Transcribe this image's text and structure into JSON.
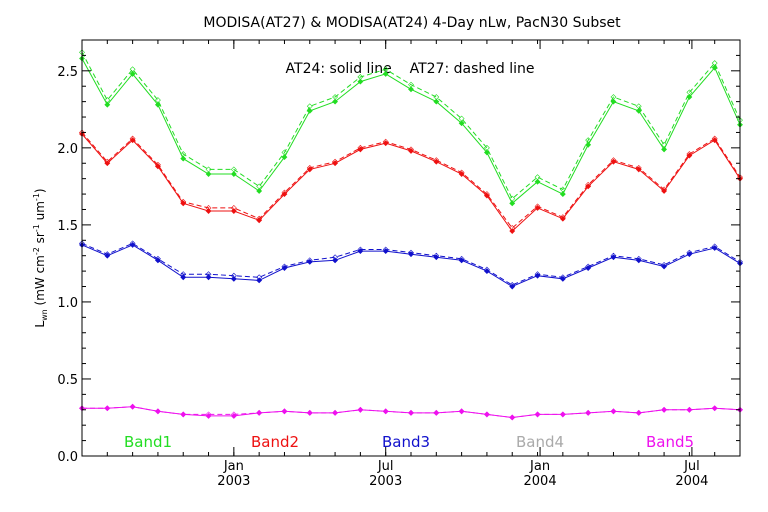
{
  "chart_data": {
    "type": "line",
    "title": "MODISA(AT27) & MODISA(AT24) 4-Day nLw, PacN30 Subset",
    "annotation": "AT24: solid line    AT27: dashed line",
    "ylabel": {
      "base": "L",
      "sub": "wn",
      "units_open": " (mW cm",
      "exp1": "-2",
      "mid": " sr",
      "exp2": "-1",
      "um": " um",
      "exp3": "-1",
      "close": ")"
    },
    "ylim": [
      0.0,
      2.7
    ],
    "xlim": [
      0,
      26
    ],
    "yticks": [
      "0.0",
      "0.5",
      "1.0",
      "1.5",
      "2.0",
      "2.5"
    ],
    "xticks": [
      {
        "x": 6,
        "month": "Jan",
        "year": "2003"
      },
      {
        "x": 12,
        "month": "Jul",
        "year": "2003"
      },
      {
        "x": 18.1,
        "month": "Jan",
        "year": "2004"
      },
      {
        "x": 24.1,
        "month": "Jul",
        "year": "2004"
      }
    ],
    "legend": [
      "Band1",
      "Band2",
      "Band3",
      "Band4",
      "Band5"
    ],
    "legend_colors": [
      "#22dd22",
      "#ee1111",
      "#1111cc",
      "#aaaaaa",
      "#ee11ee"
    ],
    "x": [
      0,
      1,
      2,
      3,
      4,
      5,
      6,
      7,
      8,
      9,
      10,
      11,
      12,
      13,
      14,
      15,
      16,
      17,
      18,
      19,
      20,
      21,
      22,
      23,
      24,
      25,
      26
    ],
    "series": [
      {
        "name": "Band1",
        "color": "#22dd22",
        "at24": [
          2.58,
          2.28,
          2.48,
          2.28,
          1.93,
          1.83,
          1.83,
          1.72,
          1.94,
          2.24,
          2.3,
          2.43,
          2.48,
          2.38,
          2.3,
          2.16,
          1.97,
          1.64,
          1.78,
          1.7,
          2.02,
          2.3,
          2.24,
          1.99,
          2.33,
          2.52,
          2.15
        ],
        "at27": [
          2.62,
          2.31,
          2.51,
          2.31,
          1.96,
          1.86,
          1.86,
          1.75,
          1.97,
          2.27,
          2.33,
          2.46,
          2.51,
          2.41,
          2.33,
          2.19,
          2.0,
          1.67,
          1.81,
          1.73,
          2.05,
          2.33,
          2.27,
          2.02,
          2.36,
          2.55,
          2.18
        ]
      },
      {
        "name": "Band2",
        "color": "#ee1111",
        "at24": [
          2.09,
          1.9,
          2.05,
          1.88,
          1.64,
          1.59,
          1.59,
          1.53,
          1.7,
          1.86,
          1.9,
          1.99,
          2.03,
          1.98,
          1.91,
          1.83,
          1.69,
          1.46,
          1.61,
          1.54,
          1.75,
          1.91,
          1.86,
          1.72,
          1.95,
          2.05,
          1.8
        ],
        "at27": [
          2.1,
          1.91,
          2.06,
          1.89,
          1.65,
          1.61,
          1.61,
          1.54,
          1.71,
          1.87,
          1.91,
          2.0,
          2.04,
          1.99,
          1.92,
          1.84,
          1.7,
          1.48,
          1.62,
          1.55,
          1.76,
          1.92,
          1.87,
          1.73,
          1.96,
          2.06,
          1.81
        ]
      },
      {
        "name": "Band3",
        "color": "#1111cc",
        "at24": [
          1.37,
          1.3,
          1.37,
          1.27,
          1.16,
          1.16,
          1.15,
          1.14,
          1.22,
          1.26,
          1.27,
          1.33,
          1.33,
          1.31,
          1.29,
          1.27,
          1.2,
          1.1,
          1.17,
          1.15,
          1.22,
          1.29,
          1.27,
          1.23,
          1.31,
          1.35,
          1.25
        ],
        "at27": [
          1.38,
          1.31,
          1.38,
          1.28,
          1.18,
          1.18,
          1.17,
          1.16,
          1.23,
          1.27,
          1.29,
          1.34,
          1.34,
          1.32,
          1.3,
          1.28,
          1.21,
          1.11,
          1.18,
          1.16,
          1.23,
          1.3,
          1.28,
          1.24,
          1.32,
          1.36,
          1.26
        ]
      },
      {
        "name": "Band5",
        "color": "#ee11ee",
        "at24": [
          0.31,
          0.31,
          0.32,
          0.29,
          0.27,
          0.26,
          0.26,
          0.28,
          0.29,
          0.28,
          0.28,
          0.3,
          0.29,
          0.28,
          0.28,
          0.29,
          0.27,
          0.25,
          0.27,
          0.27,
          0.28,
          0.29,
          0.28,
          0.3,
          0.3,
          0.31,
          0.3
        ],
        "at27": [
          0.31,
          0.31,
          0.32,
          0.29,
          0.27,
          0.27,
          0.27,
          0.28,
          0.29,
          0.28,
          0.28,
          0.3,
          0.29,
          0.28,
          0.28,
          0.29,
          0.27,
          0.25,
          0.27,
          0.27,
          0.28,
          0.29,
          0.28,
          0.3,
          0.3,
          0.31,
          0.3
        ]
      }
    ]
  }
}
